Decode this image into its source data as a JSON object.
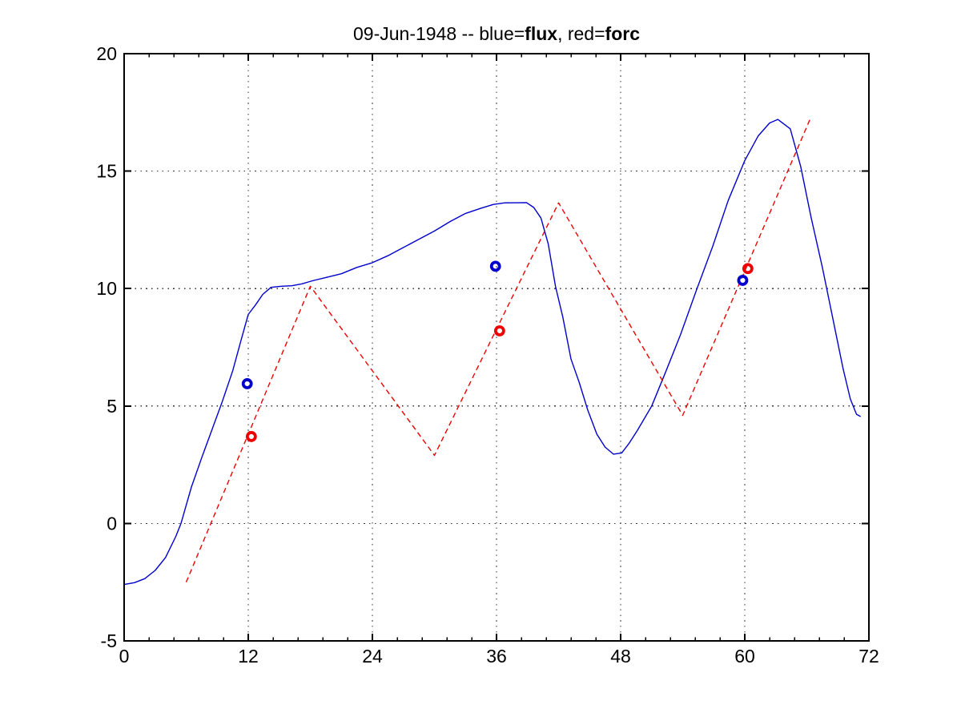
{
  "title": {
    "part1": "09-Jun-1948 -- blue=",
    "part2": "flux",
    "part3": ", red=",
    "part4": "forc",
    "full": "09-Jun-1948 -- blue=flux, red=forc"
  },
  "chart_data": {
    "type": "line",
    "title": "09-Jun-1948 -- blue=flux, red=forc",
    "xlabel": "",
    "ylabel": "",
    "xlim": [
      0,
      72
    ],
    "ylim": [
      -5,
      20
    ],
    "x_ticks": [
      0,
      12,
      24,
      36,
      48,
      60,
      72
    ],
    "x_tick_labels": [
      "0",
      "12",
      "24",
      "36",
      "48",
      "60",
      "72"
    ],
    "x_minor_tick_step": 2.4,
    "y_ticks": [
      -5,
      0,
      5,
      10,
      15,
      20
    ],
    "y_tick_labels": [
      "-5",
      "0",
      "5",
      "10",
      "15",
      "20"
    ],
    "grid_x": [
      12,
      24,
      36,
      48,
      60
    ],
    "grid_y": [
      0,
      5,
      10,
      15
    ],
    "grid_style": "dotted",
    "grid_color": "#333333",
    "axes_color": "#000000",
    "legend": [
      {
        "label": "flux",
        "color_name": "blue",
        "color": "#0000cc",
        "style": "solid line + open circles"
      },
      {
        "label": "forc",
        "color_name": "red",
        "color": "#ee0000",
        "style": "dashed line + open circles"
      }
    ],
    "series": [
      {
        "name": "flux",
        "render": "line",
        "style": "solid",
        "color": "#0000cc",
        "points": [
          [
            0,
            -2.6
          ],
          [
            1,
            -2.52
          ],
          [
            2,
            -2.35
          ],
          [
            3,
            -2.0
          ],
          [
            4,
            -1.45
          ],
          [
            5,
            -0.55
          ],
          [
            5.5,
            0
          ],
          [
            6.5,
            1.55
          ],
          [
            7.5,
            2.8
          ],
          [
            8.5,
            4.0
          ],
          [
            9.5,
            5.2
          ],
          [
            10.5,
            6.5
          ],
          [
            11.3,
            7.8
          ],
          [
            12,
            8.9
          ],
          [
            12.7,
            9.3
          ],
          [
            13.4,
            9.75
          ],
          [
            14.2,
            10.05
          ],
          [
            15.2,
            10.1
          ],
          [
            16.2,
            10.12
          ],
          [
            17.2,
            10.2
          ],
          [
            18.2,
            10.33
          ],
          [
            19.5,
            10.47
          ],
          [
            21,
            10.63
          ],
          [
            22.5,
            10.9
          ],
          [
            24,
            11.1
          ],
          [
            25.5,
            11.4
          ],
          [
            27,
            11.75
          ],
          [
            28.5,
            12.1
          ],
          [
            30,
            12.45
          ],
          [
            31.5,
            12.85
          ],
          [
            33,
            13.2
          ],
          [
            34.5,
            13.42
          ],
          [
            35.7,
            13.58
          ],
          [
            36.8,
            13.65
          ],
          [
            38.9,
            13.66
          ],
          [
            39.6,
            13.45
          ],
          [
            40.3,
            13.0
          ],
          [
            41,
            11.9
          ],
          [
            41.7,
            10.1
          ],
          [
            42.4,
            8.8
          ],
          [
            43.2,
            7.0
          ],
          [
            44,
            6.0
          ],
          [
            44.8,
            4.85
          ],
          [
            45.7,
            3.8
          ],
          [
            46.5,
            3.25
          ],
          [
            47.3,
            2.95
          ],
          [
            48.1,
            3.0
          ],
          [
            48.8,
            3.4
          ],
          [
            49.6,
            3.95
          ],
          [
            51,
            5.0
          ],
          [
            52.4,
            6.5
          ],
          [
            53.8,
            8.05
          ],
          [
            55.3,
            9.9
          ],
          [
            56.9,
            11.8
          ],
          [
            58.4,
            13.75
          ],
          [
            60,
            15.45
          ],
          [
            61.3,
            16.5
          ],
          [
            62.4,
            17.05
          ],
          [
            63.2,
            17.2
          ],
          [
            64.4,
            16.8
          ],
          [
            65.4,
            15.2
          ],
          [
            66.4,
            13.05
          ],
          [
            67.5,
            10.9
          ],
          [
            68.5,
            8.75
          ],
          [
            69.5,
            6.6
          ],
          [
            70.2,
            5.3
          ],
          [
            70.8,
            4.65
          ],
          [
            71.2,
            4.55
          ]
        ]
      },
      {
        "name": "forc",
        "render": "line",
        "style": "dashed",
        "color": "#ee0000",
        "points": [
          [
            6,
            -2.5
          ],
          [
            18,
            10.1
          ],
          [
            30,
            2.9
          ],
          [
            42,
            13.65
          ],
          [
            54,
            4.6
          ],
          [
            66.3,
            17.2
          ]
        ]
      },
      {
        "name": "flux-markers",
        "render": "scatter",
        "marker": "open-circle",
        "color": "#0000cc",
        "points": [
          [
            11.9,
            5.95
          ],
          [
            35.9,
            10.95
          ],
          [
            59.8,
            10.35
          ]
        ]
      },
      {
        "name": "forc-markers",
        "render": "scatter",
        "marker": "open-circle",
        "color": "#ee0000",
        "points": [
          [
            12.3,
            3.7
          ],
          [
            36.3,
            8.2
          ],
          [
            60.3,
            10.85
          ]
        ]
      }
    ]
  }
}
